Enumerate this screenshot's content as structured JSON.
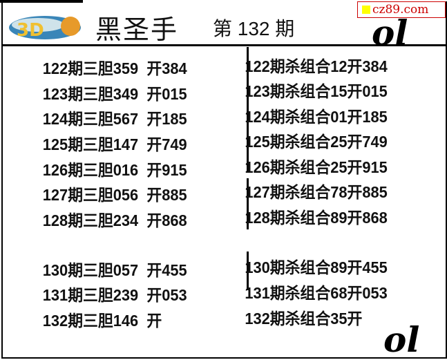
{
  "header": {
    "title": "黑圣手",
    "issue": "第 132 期",
    "site": "cz89.com",
    "logo_text": "3D"
  },
  "left": [
    {
      "text": "122期三胆359  开384"
    },
    {
      "text": "123期三胆349  开015"
    },
    {
      "text": "124期三胆567  开185"
    },
    {
      "text": "125期三胆147  开749"
    },
    {
      "text": "126期三胆016  开915"
    },
    {
      "text": "127期三胆056  开885"
    },
    {
      "text": "128期三胆234  开868"
    },
    {
      "text": "130期三胆057  开455"
    },
    {
      "text": "131期三胆239  开053"
    },
    {
      "text": "132期三胆146  开"
    }
  ],
  "right": [
    {
      "text": "122期杀组合12开384"
    },
    {
      "text": "123期杀组合15开015"
    },
    {
      "text": "124期杀组合01开185"
    },
    {
      "text": "125期杀组合25开749"
    },
    {
      "text": "126期杀组合25开915"
    },
    {
      "text": "127期杀组合78开885"
    },
    {
      "text": "128期杀组合89开868"
    },
    {
      "text": "130期杀组合89开455"
    },
    {
      "text": "131期杀组合68开053"
    },
    {
      "text": "132期杀组合35开"
    }
  ],
  "decor": {
    "corner_mark": "ol"
  }
}
